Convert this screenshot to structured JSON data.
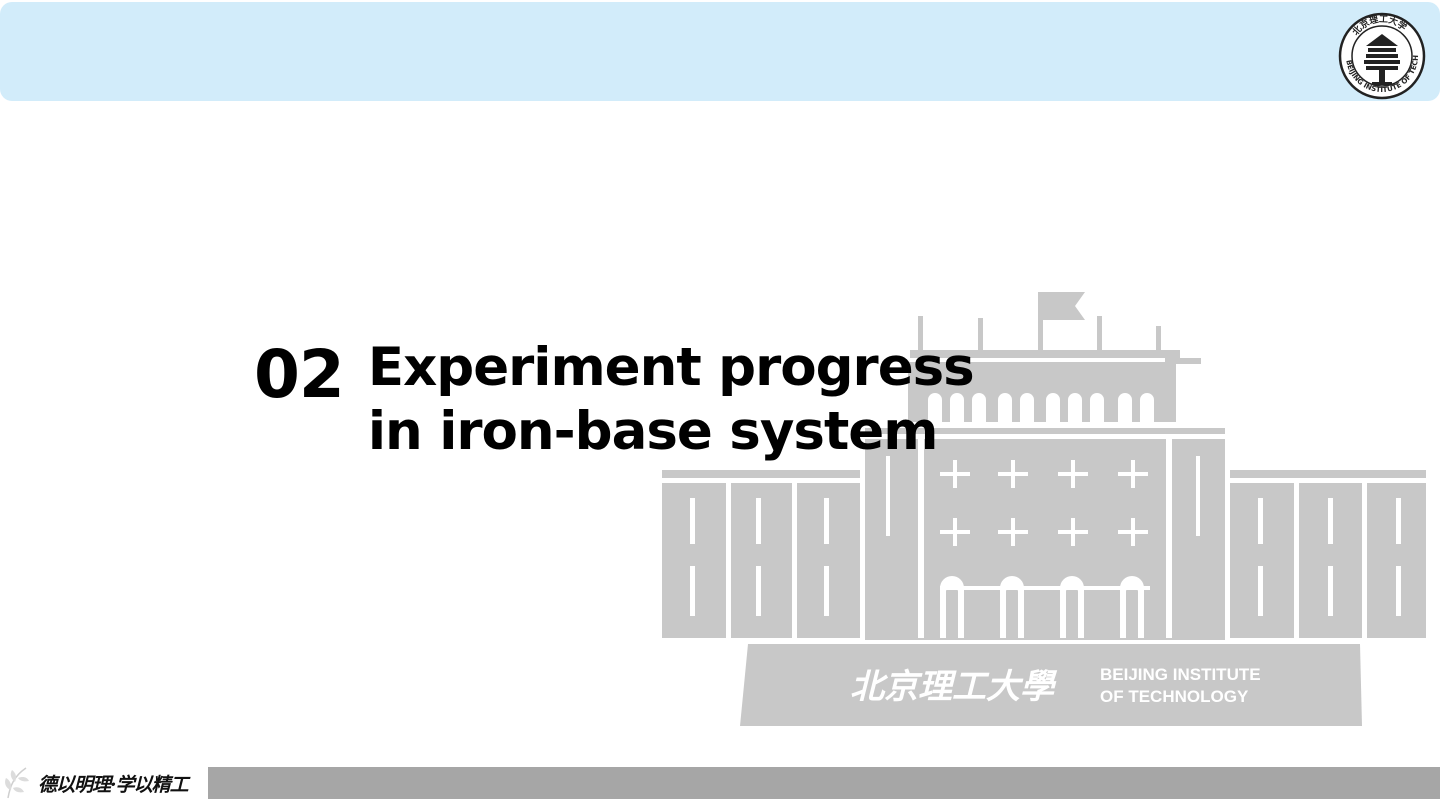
{
  "slide": {
    "section_number": "02",
    "section_title": "Experiment progress in iron-base system"
  },
  "logo": {
    "icon": "university-seal-icon",
    "ring_text": "BEIJING INSTITUTE OF TECHNOLOGY",
    "top_text": "北京理工大学"
  },
  "watermark": {
    "icon": "campus-building-icon",
    "chinese_name": "北京理工大學",
    "english_line_1": "BEIJING INSTITUTE",
    "english_line_2": "OF TECHNOLOGY"
  },
  "footer": {
    "motto": "德以明理·学以精工",
    "icon": "leaf-icon"
  },
  "colors": {
    "banner": "#d2ecfa",
    "footer_bar": "#a6a6a6",
    "watermark_fill": "#c8c8c8",
    "title_text": "#000000"
  }
}
